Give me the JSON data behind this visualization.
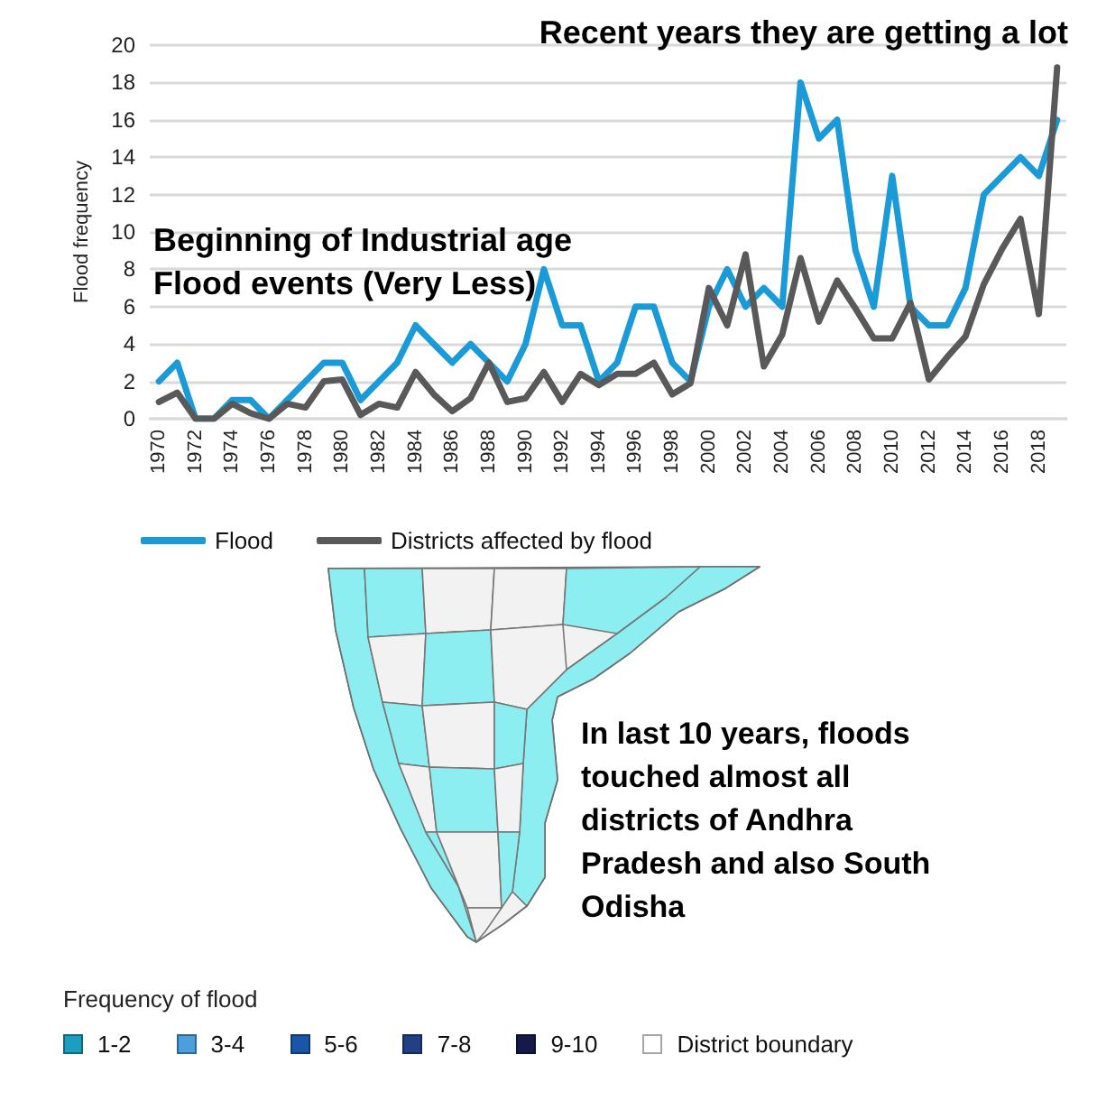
{
  "chart_data": [
    {
      "type": "line",
      "ylabel": "Flood frequency",
      "categories": [
        "1970",
        null,
        "1972",
        null,
        "1974",
        null,
        "1976",
        null,
        "1978",
        null,
        "1980",
        null,
        "1982",
        null,
        "1984",
        null,
        "1986",
        null,
        "1988",
        null,
        "1990",
        null,
        "1992",
        null,
        "1994",
        null,
        "1996",
        null,
        "1998",
        null,
        "2000",
        null,
        "2002",
        null,
        "2004",
        null,
        "2006",
        null,
        "2008",
        null,
        "2010",
        null,
        "2012",
        null,
        "2014",
        null,
        "2016",
        null,
        "2018",
        null
      ],
      "series": [
        {
          "name": "Flood",
          "color": "#1a9ad6",
          "values": [
            2,
            3,
            0,
            0,
            1,
            1,
            0,
            1,
            2,
            3,
            3,
            1,
            2,
            3,
            5,
            4,
            3,
            4,
            3,
            2,
            4,
            8,
            5,
            5,
            2,
            3,
            6,
            6,
            3,
            2,
            6,
            8,
            6,
            7,
            6,
            18,
            15,
            16,
            9,
            6,
            13,
            6,
            5,
            5,
            7,
            12,
            13,
            14,
            13,
            16
          ]
        },
        {
          "name": "Districts affected by flood",
          "color": "#595959",
          "values": [
            0.9,
            1.4,
            0,
            0,
            0.8,
            0.3,
            0,
            0.8,
            0.6,
            2,
            2.1,
            0.2,
            0.8,
            0.6,
            2.5,
            1.3,
            0.4,
            1.1,
            3,
            0.9,
            1.1,
            2.5,
            0.9,
            2.4,
            1.8,
            2.4,
            2.4,
            3,
            1.3,
            1.9,
            7,
            5,
            8.8,
            2.8,
            4.5,
            8.6,
            5.2,
            7.4,
            5.9,
            4.3,
            4.3,
            6.2,
            2.1,
            3.3,
            4.4,
            7.2,
            9.1,
            10.7,
            5.6,
            18.8
          ]
        }
      ],
      "ylim": [
        0,
        20
      ],
      "yticks": [
        0,
        2,
        4,
        6,
        8,
        10,
        12,
        14,
        16,
        18,
        20
      ],
      "grid": "y",
      "legend": "bottom left",
      "marker": "none",
      "line_style": "solid",
      "annotations": [
        "Recent years they are getting a lot",
        "Beginning of Industrial age Flood events (Very Less)"
      ]
    },
    {
      "type": "other",
      "legend_title": "Frequency of flood",
      "categories": [
        "1-2",
        "3-4",
        "5-6",
        "7-8",
        "9-10",
        "District boundary"
      ],
      "colors": [
        "#1b9ebf",
        "#4a9fdc",
        "#1a56a8",
        "#233f86",
        "#151a4a",
        "#ffffff"
      ],
      "annotations": [
        "In last 10 years, floods touched almost all districts of Andhra Pradesh and also South Odisha"
      ]
    }
  ]
}
